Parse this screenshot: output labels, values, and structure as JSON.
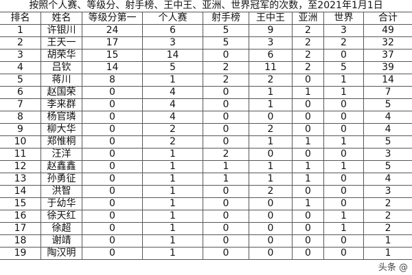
{
  "title": "按照个人赛、等级分、射手榜、王中王、亚洲、世界冠军的次数，至2021年1月1日",
  "headers": [
    "排名",
    "姓名",
    "等级分第一",
    "个人赛",
    "射手榜",
    "王中王",
    "亚洲",
    "世界",
    "合计"
  ],
  "rows": [
    [
      "1",
      "许银川",
      "24",
      "6",
      "5",
      "9",
      "2",
      "3",
      "49"
    ],
    [
      "2",
      "王天一",
      "17",
      "3",
      "5",
      "3",
      "2",
      "2",
      "32"
    ],
    [
      "3",
      "胡荣华",
      "15",
      "14",
      "0",
      "6",
      "2",
      "0",
      "37"
    ],
    [
      "4",
      "吕钦",
      "14",
      "5",
      "2",
      "11",
      "2",
      "5",
      "39"
    ],
    [
      "5",
      "蒋川",
      "8",
      "1",
      "2",
      "2",
      "0",
      "1",
      "14"
    ],
    [
      "6",
      "赵国荣",
      "0",
      "4",
      "0",
      "1",
      "1",
      "1",
      "7"
    ],
    [
      "7",
      "李来群",
      "0",
      "4",
      "0",
      "1",
      "0",
      "0",
      "5"
    ],
    [
      "8",
      "杨官璘",
      "0",
      "4",
      "0",
      "0",
      "0",
      "0",
      "4"
    ],
    [
      "9",
      "柳大华",
      "0",
      "2",
      "0",
      "2",
      "0",
      "0",
      "4"
    ],
    [
      "10",
      "郑惟桐",
      "0",
      "2",
      "0",
      "1",
      "1",
      "1",
      "5"
    ],
    [
      "11",
      "汪洋",
      "0",
      "1",
      "2",
      "0",
      "0",
      "0",
      "3"
    ],
    [
      "12",
      "赵鑫鑫",
      "0",
      "1",
      "1",
      "1",
      "1",
      "1",
      "5"
    ],
    [
      "13",
      "孙勇征",
      "0",
      "1",
      "1",
      "1",
      "1",
      "0",
      "4"
    ],
    [
      "14",
      "洪智",
      "0",
      "1",
      "0",
      "2",
      "0",
      "0",
      "3"
    ],
    [
      "15",
      "于幼华",
      "0",
      "1",
      "0",
      "0",
      "1",
      "0",
      "2"
    ],
    [
      "16",
      "徐天红",
      "0",
      "1",
      "0",
      "0",
      "0",
      "1",
      "2"
    ],
    [
      "17",
      "徐超",
      "0",
      "1",
      "0",
      "0",
      "0",
      "1",
      "2"
    ],
    [
      "18",
      "谢靖",
      "0",
      "1",
      "0",
      "0",
      "0",
      "0",
      "1"
    ],
    [
      "19",
      "陶汉明",
      "0",
      "1",
      "0",
      "0",
      "0",
      "0",
      "1"
    ]
  ],
  "watermark": "头条 @"
}
